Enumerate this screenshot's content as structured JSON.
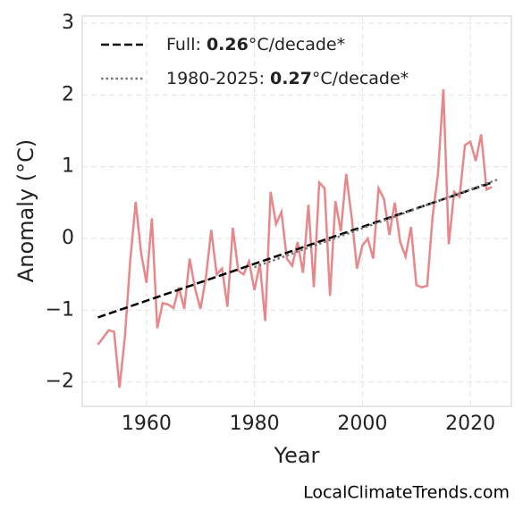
{
  "chart_data": {
    "type": "line",
    "xlabel": "Year",
    "ylabel": "Anomaly (°C)",
    "source": "LocalClimateTrends.com",
    "xlim": [
      1948.1,
      2027.6
    ],
    "ylim": [
      -2.34,
      3.1
    ],
    "xticks": [
      1960,
      1980,
      2000,
      2020
    ],
    "yticks": [
      {
        "value": -2,
        "label": "−2"
      },
      {
        "value": -1,
        "label": "−1"
      },
      0,
      1,
      2,
      3
    ],
    "grid": true,
    "legend": "upper left",
    "x": [
      1951,
      1952,
      1953,
      1954,
      1955,
      1956,
      1957,
      1958,
      1959,
      1960,
      1961,
      1962,
      1963,
      1964,
      1965,
      1966,
      1967,
      1968,
      1969,
      1970,
      1971,
      1972,
      1973,
      1974,
      1975,
      1976,
      1977,
      1978,
      1979,
      1980,
      1981,
      1982,
      1983,
      1984,
      1985,
      1986,
      1987,
      1988,
      1989,
      1990,
      1991,
      1992,
      1993,
      1994,
      1995,
      1996,
      1997,
      1998,
      1999,
      2000,
      2001,
      2002,
      2003,
      2004,
      2005,
      2006,
      2007,
      2008,
      2009,
      2010,
      2011,
      2012,
      2013,
      2014,
      2015,
      2016,
      2017,
      2018,
      2019,
      2020,
      2021,
      2022,
      2023,
      2024
    ],
    "series": [
      {
        "color": "#e8878a",
        "values": [
          -1.48,
          -1.38,
          -1.28,
          -1.3,
          -2.08,
          -1.37,
          -0.3,
          0.51,
          -0.2,
          -0.62,
          0.28,
          -1.25,
          -0.9,
          -0.92,
          -0.97,
          -0.68,
          -0.98,
          -0.28,
          -0.7,
          -0.98,
          -0.55,
          0.12,
          -0.5,
          -0.42,
          -0.95,
          0.15,
          -0.45,
          -0.5,
          -0.32,
          -0.72,
          -0.35,
          -1.15,
          0.65,
          0.2,
          0.37,
          -0.28,
          -0.38,
          -0.05,
          -0.48,
          0.47,
          -0.68,
          0.78,
          0.7,
          -0.8,
          0.52,
          0.1,
          0.9,
          0.3,
          -0.42,
          -0.1,
          0.0,
          -0.28,
          0.7,
          0.55,
          0.05,
          0.5,
          -0.05,
          -0.25,
          0.16,
          -0.65,
          -0.68,
          -0.66,
          0.3,
          0.9,
          2.08,
          -0.08,
          0.65,
          0.58,
          1.3,
          1.35,
          1.08,
          1.45,
          0.68,
          0.72
        ]
      }
    ],
    "trends": [
      {
        "label_prefix": "Full: ",
        "rate": 0.26,
        "label_suffix": "°C/decade*",
        "color": "#000000",
        "style": "dashed",
        "x": [
          1951,
          2024
        ],
        "values": [
          -1.1,
          0.78
        ]
      },
      {
        "label_prefix": "1980-2025: ",
        "rate": 0.27,
        "label_suffix": "°C/decade*",
        "color": "#777777",
        "style": "dotted",
        "x": [
          1980,
          2025
        ],
        "values": [
          -0.4,
          0.82
        ]
      }
    ]
  }
}
